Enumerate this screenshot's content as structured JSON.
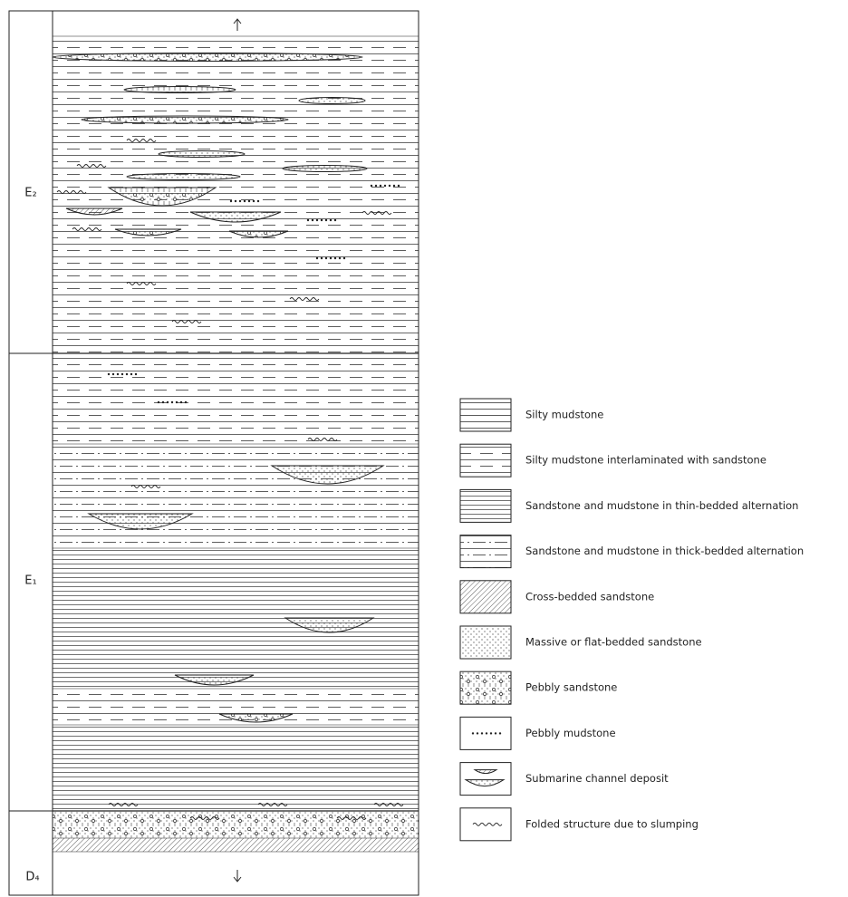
{
  "units": [
    {
      "label": "E₂"
    },
    {
      "label": "E₁"
    },
    {
      "label": "D₄"
    }
  ],
  "legend": [
    {
      "label": "Silty mudstone"
    },
    {
      "label": "Silty mudstone  interlaminated with sandstone"
    },
    {
      "label": "Sandstone and mudstone in thin-bedded alternation"
    },
    {
      "label": "Sandstone and mudstone in thick-bedded alternation"
    },
    {
      "label": "Cross-bedded sandstone"
    },
    {
      "label": "Massive or flat-bedded sandstone"
    },
    {
      "label": "Pebbly sandstone"
    },
    {
      "label": "Pebbly mudstone"
    },
    {
      "label": "Submarine channel deposit"
    },
    {
      "label": "Folded structure due to slumping"
    }
  ]
}
